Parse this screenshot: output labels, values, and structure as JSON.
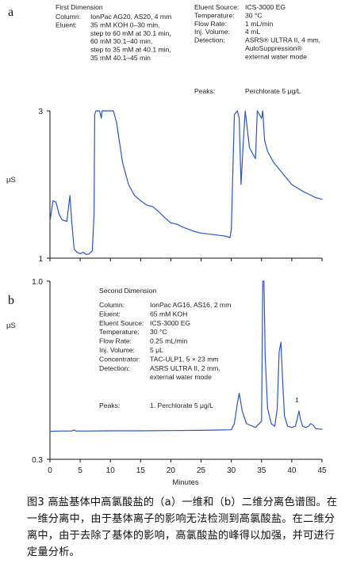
{
  "chart_data": [
    {
      "panel": "a",
      "type": "line",
      "title": "First Dimension",
      "params_left": [
        [
          "Column:",
          "IonPac AG20, AS20, 4 mm"
        ],
        [
          "Eluent:",
          "35 mM KOH 0–30 min,"
        ],
        [
          "",
          "step to 60 mM at 30.1 min,"
        ],
        [
          "",
          "60 mM 30.1–40 min,"
        ],
        [
          "",
          "step to 35 mM at 40.1 min,"
        ],
        [
          "",
          "35 mM 40.1–45 min"
        ]
      ],
      "params_right": [
        [
          "Eluent Source:",
          "ICS-3000 EG"
        ],
        [
          "Temperature:",
          "30 °C"
        ],
        [
          "Flow Rate:",
          "1 mL/min"
        ],
        [
          "Inj. Volume:",
          "4 mL"
        ],
        [
          "Detection:",
          "ASRS® ULTRA II, 4 mm,"
        ],
        [
          "",
          "AutoSuppression®"
        ],
        [
          "",
          "external water mode"
        ]
      ],
      "peaks": [
        "Peaks:",
        "Perchlorate   5 μg/L"
      ],
      "ylabel": "μS",
      "ytick_labels": [
        "3",
        "1"
      ],
      "yticks": [
        3,
        1
      ],
      "ylim": [
        1,
        3
      ],
      "xlim": [
        0,
        45
      ],
      "xticks": [
        0,
        5,
        10,
        15,
        20,
        25,
        30,
        35,
        40,
        45
      ],
      "grid": false,
      "series": [
        {
          "color": "#2a55c4",
          "x": [
            0,
            0.5,
            1.0,
            1.5,
            2.0,
            2.8,
            3.3,
            3.6,
            4.0,
            4.5,
            5.0,
            5.5,
            6.0,
            6.5,
            7.0,
            7.3,
            7.4,
            7.6,
            8.2,
            8.5,
            8.6,
            9.2,
            10.0,
            10.5,
            11.0,
            12.0,
            13.0,
            14.0,
            15.0,
            16.0,
            17.0,
            18.0,
            19.0,
            20.0,
            21.0,
            22.0,
            23.0,
            24.0,
            25.0,
            26.0,
            27.0,
            28.0,
            29.0,
            29.8,
            30.0,
            30.5,
            31.0,
            31.3,
            31.6,
            32.0,
            32.3,
            33.0,
            34.0,
            34.3,
            35.0,
            35.2,
            35.5,
            36.0,
            37.0,
            38.0,
            39.0,
            40.0,
            41.0,
            42.0,
            43.0,
            44.0,
            45.0
          ],
          "y": [
            1.5,
            1.78,
            1.76,
            1.6,
            1.52,
            1.5,
            1.85,
            1.5,
            1.12,
            1.08,
            1.06,
            1.08,
            1.05,
            1.06,
            1.1,
            1.6,
            2.95,
            3.0,
            3.0,
            2.9,
            3.0,
            3.0,
            3.0,
            3.0,
            2.85,
            2.3,
            2.0,
            1.85,
            1.78,
            1.72,
            1.7,
            1.63,
            1.55,
            1.48,
            1.46,
            1.42,
            1.39,
            1.36,
            1.34,
            1.33,
            1.32,
            1.31,
            1.3,
            1.28,
            1.4,
            2.95,
            3.0,
            2.9,
            2.0,
            2.6,
            3.0,
            2.5,
            2.35,
            3.0,
            2.9,
            3.0,
            2.6,
            2.45,
            2.3,
            2.2,
            2.1,
            2.0,
            1.95,
            1.9,
            1.86,
            1.82,
            1.8
          ]
        }
      ]
    },
    {
      "panel": "b",
      "type": "line",
      "title": "Second Dimension",
      "params": [
        [
          "Column:",
          "IonPac AG16, AS16, 2 mm"
        ],
        [
          "Eluent:",
          "65 mM KOH"
        ],
        [
          "Eluent Source:",
          "ICS-3000 EG"
        ],
        [
          "Temperature:",
          "30 °C"
        ],
        [
          "Flow Rate:",
          "0.25 mL/min"
        ],
        [
          "Inj. Volume:",
          "5 μL"
        ],
        [
          "Concentrator:",
          "TAC-ULP1, 5 × 23 mm"
        ],
        [
          "Detection:",
          "ASRS ULTRA II, 2 mm,"
        ],
        [
          "",
          "external water mode"
        ]
      ],
      "peaks": [
        "Peaks:",
        "1. Perchlorate  5 μg/L"
      ],
      "peak_label": "1",
      "ylabel": "μS",
      "xlabel": "Minutes",
      "ytick_labels": [
        "1.0",
        "0.3"
      ],
      "yticks": [
        1.0,
        0.3
      ],
      "ylim": [
        0.3,
        1.0
      ],
      "xlim": [
        0,
        45
      ],
      "xticks": [
        0,
        5,
        10,
        15,
        20,
        25,
        30,
        35,
        40,
        45
      ],
      "xtick_labels": [
        "0",
        "5",
        "10",
        "15",
        "20",
        "25",
        "30",
        "35",
        "40",
        "45"
      ],
      "grid": false,
      "series": [
        {
          "color": "#2a55c4",
          "x": [
            0,
            2,
            3.5,
            4,
            4.3,
            6,
            10,
            15,
            20,
            25,
            28,
            30,
            30.5,
            31.0,
            31.3,
            31.8,
            32.5,
            34.0,
            35.0,
            35.2,
            35.4,
            35.6,
            36.0,
            36.6,
            37.2,
            37.6,
            37.9,
            38.2,
            38.5,
            38.8,
            39.3,
            40.0,
            40.6,
            41.0,
            41.2,
            41.4,
            41.8,
            42.3,
            42.8,
            43.1,
            43.5,
            44.0,
            45.0
          ],
          "y": [
            0.41,
            0.411,
            0.411,
            0.415,
            0.411,
            0.411,
            0.412,
            0.412,
            0.413,
            0.414,
            0.415,
            0.416,
            0.44,
            0.52,
            0.56,
            0.49,
            0.44,
            0.425,
            0.45,
            1.0,
            1.0,
            0.7,
            0.5,
            0.44,
            0.43,
            0.5,
            0.72,
            0.76,
            0.6,
            0.47,
            0.43,
            0.425,
            0.43,
            0.47,
            0.49,
            0.46,
            0.43,
            0.425,
            0.43,
            0.44,
            0.435,
            0.42,
            0.418
          ]
        }
      ]
    }
  ],
  "caption": "图3   高盐基体中高氯酸盐的（a）一维和（b）二维分离色谱图。在一维分离中，由于基体离子的影响无法检测到高氯酸盐。在二维分离中，由于去除了基体的影响，高氯酸盐的峰得以加强，并可进行定量分析。"
}
